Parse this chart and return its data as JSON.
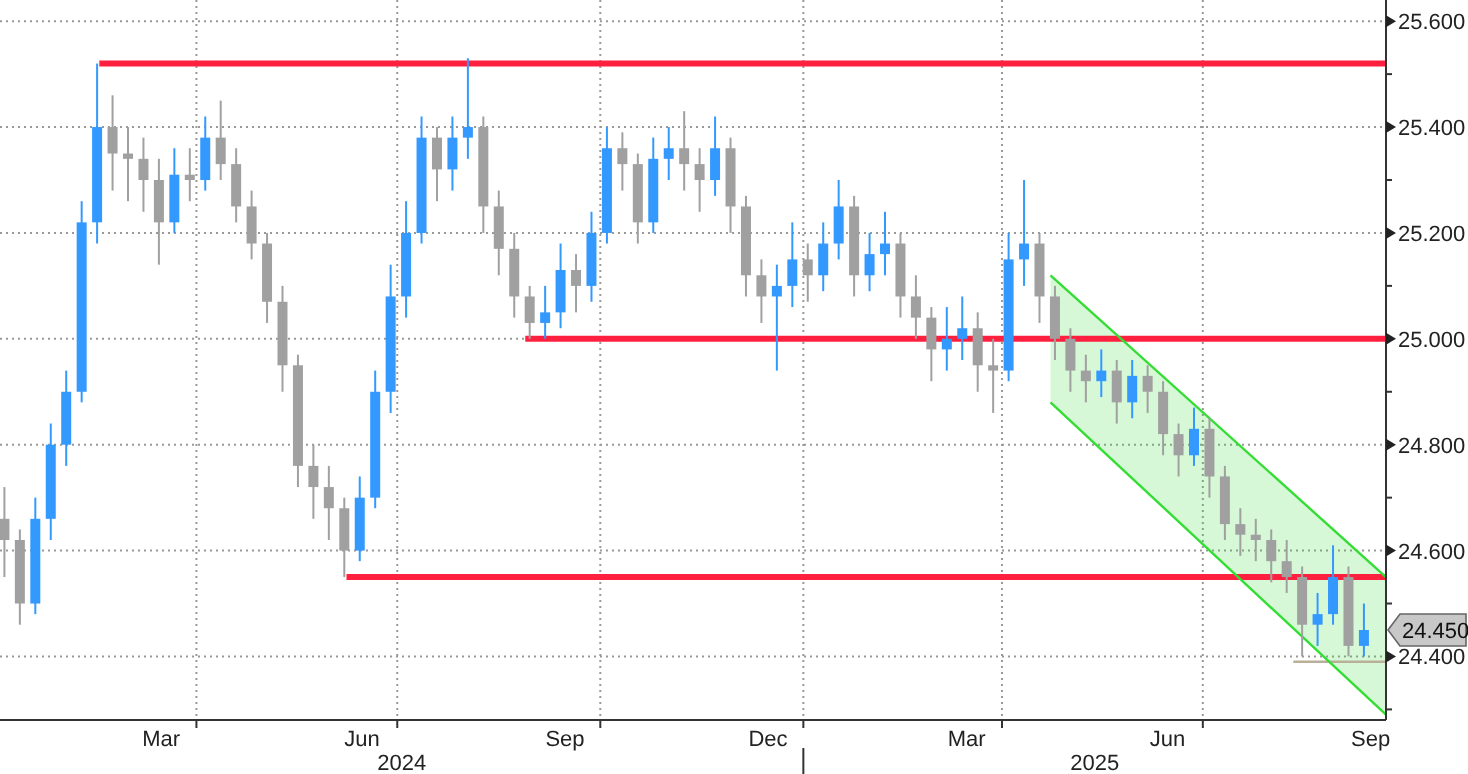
{
  "chart_data": {
    "type": "candlestick",
    "x": [
      "2024-01-05",
      "2024-01-12",
      "2024-01-19",
      "2024-01-26",
      "2024-02-02",
      "2024-02-09",
      "2024-02-16",
      "2024-02-23",
      "2024-03-01",
      "2024-03-08",
      "2024-03-15",
      "2024-03-22",
      "2024-03-29",
      "2024-04-05",
      "2024-04-12",
      "2024-04-19",
      "2024-04-26",
      "2024-05-03",
      "2024-05-10",
      "2024-05-17",
      "2024-05-24",
      "2024-05-31",
      "2024-06-07",
      "2024-06-14",
      "2024-06-21",
      "2024-06-28",
      "2024-07-05",
      "2024-07-12",
      "2024-07-19",
      "2024-07-26",
      "2024-08-02",
      "2024-08-09",
      "2024-08-16",
      "2024-08-23",
      "2024-08-30",
      "2024-09-06",
      "2024-09-13",
      "2024-09-20",
      "2024-09-27",
      "2024-10-04",
      "2024-10-11",
      "2024-10-18",
      "2024-10-25",
      "2024-11-01",
      "2024-11-08",
      "2024-11-15",
      "2024-11-22",
      "2024-11-29",
      "2024-12-06",
      "2024-12-13",
      "2024-12-20",
      "2024-12-27",
      "2025-01-03",
      "2025-01-10",
      "2025-01-17",
      "2025-01-24",
      "2025-01-31",
      "2025-02-07",
      "2025-02-14",
      "2025-02-21",
      "2025-02-28",
      "2025-03-07",
      "2025-03-14",
      "2025-03-21",
      "2025-03-28",
      "2025-04-04",
      "2025-04-11",
      "2025-04-18",
      "2025-04-25",
      "2025-05-02",
      "2025-05-09",
      "2025-05-16",
      "2025-05-23",
      "2025-05-30",
      "2025-06-06",
      "2025-06-13",
      "2025-06-20",
      "2025-06-27",
      "2025-07-04",
      "2025-07-11",
      "2025-07-18",
      "2025-07-25",
      "2025-08-01",
      "2025-08-08",
      "2025-08-15",
      "2025-08-22",
      "2025-08-29",
      "2025-09-05",
      "2025-09-12"
    ],
    "ohlc": [
      [
        24.66,
        24.72,
        24.55,
        24.62
      ],
      [
        24.62,
        24.64,
        24.46,
        24.5
      ],
      [
        24.5,
        24.7,
        24.48,
        24.66
      ],
      [
        24.66,
        24.84,
        24.62,
        24.8
      ],
      [
        24.8,
        24.94,
        24.76,
        24.9
      ],
      [
        24.9,
        25.26,
        24.88,
        25.22
      ],
      [
        25.22,
        25.52,
        25.18,
        25.4
      ],
      [
        25.4,
        25.46,
        25.28,
        25.35
      ],
      [
        25.35,
        25.4,
        25.26,
        25.34
      ],
      [
        25.34,
        25.38,
        25.24,
        25.3
      ],
      [
        25.3,
        25.34,
        25.14,
        25.22
      ],
      [
        25.22,
        25.36,
        25.2,
        25.31
      ],
      [
        25.31,
        25.36,
        25.26,
        25.3
      ],
      [
        25.3,
        25.42,
        25.28,
        25.38
      ],
      [
        25.38,
        25.45,
        25.3,
        25.33
      ],
      [
        25.33,
        25.36,
        25.22,
        25.25
      ],
      [
        25.25,
        25.28,
        25.15,
        25.18
      ],
      [
        25.18,
        25.2,
        25.03,
        25.07
      ],
      [
        25.07,
        25.1,
        24.9,
        24.95
      ],
      [
        24.95,
        24.97,
        24.72,
        24.76
      ],
      [
        24.76,
        24.8,
        24.66,
        24.72
      ],
      [
        24.72,
        24.76,
        24.62,
        24.68
      ],
      [
        24.68,
        24.7,
        24.55,
        24.6
      ],
      [
        24.6,
        24.74,
        24.58,
        24.7
      ],
      [
        24.7,
        24.94,
        24.68,
        24.9
      ],
      [
        24.9,
        25.14,
        24.86,
        25.08
      ],
      [
        25.08,
        25.26,
        25.04,
        25.2
      ],
      [
        25.2,
        25.42,
        25.18,
        25.38
      ],
      [
        25.38,
        25.4,
        25.26,
        25.32
      ],
      [
        25.32,
        25.42,
        25.28,
        25.38
      ],
      [
        25.38,
        25.53,
        25.34,
        25.4
      ],
      [
        25.4,
        25.42,
        25.2,
        25.25
      ],
      [
        25.25,
        25.28,
        25.12,
        25.17
      ],
      [
        25.17,
        25.2,
        25.04,
        25.08
      ],
      [
        25.08,
        25.1,
        25.0,
        25.03
      ],
      [
        25.03,
        25.1,
        25.0,
        25.05
      ],
      [
        25.05,
        25.18,
        25.02,
        25.13
      ],
      [
        25.13,
        25.16,
        25.05,
        25.1
      ],
      [
        25.1,
        25.24,
        25.07,
        25.2
      ],
      [
        25.2,
        25.4,
        25.18,
        25.36
      ],
      [
        25.36,
        25.39,
        25.28,
        25.33
      ],
      [
        25.33,
        25.35,
        25.18,
        25.22
      ],
      [
        25.22,
        25.38,
        25.2,
        25.34
      ],
      [
        25.34,
        25.4,
        25.3,
        25.36
      ],
      [
        25.36,
        25.43,
        25.28,
        25.33
      ],
      [
        25.33,
        25.36,
        25.24,
        25.3
      ],
      [
        25.3,
        25.42,
        25.27,
        25.36
      ],
      [
        25.36,
        25.38,
        25.2,
        25.25
      ],
      [
        25.25,
        25.27,
        25.08,
        25.12
      ],
      [
        25.12,
        25.15,
        25.03,
        25.08
      ],
      [
        25.08,
        25.14,
        24.94,
        25.1
      ],
      [
        25.1,
        25.22,
        25.06,
        25.15
      ],
      [
        25.15,
        25.18,
        25.07,
        25.12
      ],
      [
        25.12,
        25.22,
        25.09,
        25.18
      ],
      [
        25.18,
        25.3,
        25.15,
        25.25
      ],
      [
        25.25,
        25.27,
        25.08,
        25.12
      ],
      [
        25.12,
        25.2,
        25.09,
        25.16
      ],
      [
        25.16,
        25.24,
        25.12,
        25.18
      ],
      [
        25.18,
        25.2,
        25.04,
        25.08
      ],
      [
        25.08,
        25.12,
        25.0,
        25.04
      ],
      [
        25.04,
        25.06,
        24.92,
        24.98
      ],
      [
        24.98,
        25.06,
        24.94,
        25.0
      ],
      [
        25.0,
        25.08,
        24.96,
        25.02
      ],
      [
        25.02,
        25.05,
        24.9,
        24.95
      ],
      [
        24.95,
        25.0,
        24.86,
        24.94
      ],
      [
        24.94,
        25.2,
        24.92,
        25.15
      ],
      [
        25.15,
        25.3,
        25.1,
        25.18
      ],
      [
        25.18,
        25.2,
        25.03,
        25.08
      ],
      [
        25.08,
        25.1,
        24.96,
        25.0
      ],
      [
        25.0,
        25.02,
        24.9,
        24.94
      ],
      [
        24.94,
        24.97,
        24.88,
        24.92
      ],
      [
        24.92,
        24.98,
        24.89,
        24.94
      ],
      [
        24.94,
        24.96,
        24.84,
        24.88
      ],
      [
        24.88,
        24.96,
        24.85,
        24.93
      ],
      [
        24.93,
        24.95,
        24.86,
        24.9
      ],
      [
        24.9,
        24.92,
        24.78,
        24.82
      ],
      [
        24.82,
        24.84,
        24.74,
        24.78
      ],
      [
        24.78,
        24.87,
        24.76,
        24.83
      ],
      [
        24.83,
        24.85,
        24.7,
        24.74
      ],
      [
        24.74,
        24.76,
        24.62,
        24.65
      ],
      [
        24.65,
        24.68,
        24.59,
        24.63
      ],
      [
        24.63,
        24.66,
        24.58,
        24.62
      ],
      [
        24.62,
        24.64,
        24.54,
        24.58
      ],
      [
        24.58,
        24.62,
        24.52,
        24.55
      ],
      [
        24.55,
        24.57,
        24.4,
        24.46
      ],
      [
        24.46,
        24.52,
        24.42,
        24.48
      ],
      [
        24.48,
        24.61,
        24.46,
        24.55
      ],
      [
        24.55,
        24.57,
        24.4,
        24.42
      ],
      [
        24.42,
        24.5,
        24.4,
        24.45
      ]
    ],
    "colors": [
      "#a0a0a0",
      "#a0a0a0",
      "#3399ff",
      "#3399ff",
      "#3399ff",
      "#3399ff",
      "#3399ff",
      "#a0a0a0",
      "#a0a0a0",
      "#a0a0a0",
      "#a0a0a0",
      "#3399ff",
      "#a0a0a0",
      "#3399ff",
      "#a0a0a0",
      "#a0a0a0",
      "#a0a0a0",
      "#a0a0a0",
      "#a0a0a0",
      "#a0a0a0",
      "#a0a0a0",
      "#a0a0a0",
      "#a0a0a0",
      "#3399ff",
      "#3399ff",
      "#3399ff",
      "#3399ff",
      "#3399ff",
      "#a0a0a0",
      "#3399ff",
      "#3399ff",
      "#a0a0a0",
      "#a0a0a0",
      "#a0a0a0",
      "#a0a0a0",
      "#3399ff",
      "#3399ff",
      "#a0a0a0",
      "#3399ff",
      "#3399ff",
      "#a0a0a0",
      "#a0a0a0",
      "#3399ff",
      "#3399ff",
      "#a0a0a0",
      "#a0a0a0",
      "#3399ff",
      "#a0a0a0",
      "#a0a0a0",
      "#a0a0a0",
      "#3399ff",
      "#3399ff",
      "#a0a0a0",
      "#3399ff",
      "#3399ff",
      "#a0a0a0",
      "#3399ff",
      "#3399ff",
      "#a0a0a0",
      "#a0a0a0",
      "#a0a0a0",
      "#3399ff",
      "#3399ff",
      "#a0a0a0",
      "#a0a0a0",
      "#3399ff",
      "#3399ff",
      "#a0a0a0",
      "#a0a0a0",
      "#a0a0a0",
      "#a0a0a0",
      "#3399ff",
      "#a0a0a0",
      "#3399ff",
      "#a0a0a0",
      "#a0a0a0",
      "#a0a0a0",
      "#3399ff",
      "#a0a0a0",
      "#a0a0a0",
      "#a0a0a0",
      "#a0a0a0",
      "#a0a0a0",
      "#a0a0a0",
      "#a0a0a0",
      "#3399ff",
      "#3399ff",
      "#a0a0a0",
      "#3399ff"
    ],
    "series": [
      {
        "type": "line",
        "x": [
          "2024-02-17",
          "2025-09-22"
        ],
        "values": [
          25.52,
          25.52
        ],
        "color": "#ff2040"
      },
      {
        "type": "line",
        "x": [
          "2024-08-28",
          "2025-09-22"
        ],
        "values": [
          25.0,
          25.0
        ],
        "color": "#ff2040"
      },
      {
        "type": "line",
        "x": [
          "2024-06-08",
          "2025-09-22"
        ],
        "values": [
          24.55,
          24.55
        ],
        "color": "#ff2040"
      },
      {
        "type": "line",
        "x": [
          "2025-08-11",
          "2025-09-22"
        ],
        "values": [
          24.39,
          24.39
        ],
        "color": "#b8b098"
      },
      {
        "type": "line",
        "x": [
          "2025-04-23",
          "2025-09-22"
        ],
        "values": [
          25.12,
          24.55
        ],
        "color": "#33dd33"
      },
      {
        "type": "line",
        "x": [
          "2025-04-23",
          "2025-09-22"
        ],
        "values": [
          24.88,
          24.29
        ],
        "color": "#33dd33"
      }
    ],
    "xlim": [
      "2024-01-03",
      "2025-09-22"
    ],
    "xticks": [
      {
        "value": "2024-03-16",
        "label": "Mar"
      },
      {
        "value": "2024-06-15",
        "label": "Jun"
      },
      {
        "value": "2024-09-15",
        "label": "Sep"
      },
      {
        "value": "2024-12-16",
        "label": "Dec"
      },
      {
        "value": "2025-03-16",
        "label": "Mar"
      },
      {
        "value": "2025-06-15",
        "label": "Jun"
      },
      {
        "value": "2025-09-15",
        "label": "Sep"
      },
      {
        "value": "2024-04-01",
        "label": null
      },
      {
        "value": "2024-07-01",
        "label": null
      },
      {
        "value": "2024-10-01",
        "label": null
      },
      {
        "value": "2025-01-01",
        "label": null
      },
      {
        "value": "2025-04-01",
        "label": null
      },
      {
        "value": "2025-07-01",
        "label": null
      }
    ],
    "ylim": [
      24.28,
      25.64
    ],
    "yticks": [
      {
        "value": 24.4,
        "label": "24.400"
      },
      {
        "value": 24.6,
        "label": "24.600"
      },
      {
        "value": 24.8,
        "label": "24.800"
      },
      {
        "value": 25.0,
        "label": "25.000"
      },
      {
        "value": 25.2,
        "label": "25.200"
      },
      {
        "value": 25.4,
        "label": "25.400"
      },
      {
        "value": 25.6,
        "label": "25.600"
      },
      {
        "value": 24.3,
        "label": null
      },
      {
        "value": 24.5,
        "label": null
      },
      {
        "value": 24.7,
        "label": null
      },
      {
        "value": 24.9,
        "label": null
      },
      {
        "value": 25.1,
        "label": null
      },
      {
        "value": 25.3,
        "label": null
      },
      {
        "value": 25.5,
        "label": null
      }
    ],
    "grid": true,
    "annotations": [
      "2024",
      "2025",
      "24.450"
    ]
  }
}
